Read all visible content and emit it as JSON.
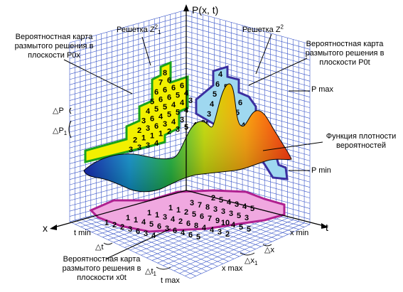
{
  "title": {
    "axis_p": "P(x, t)",
    "axis_x": "x",
    "axis_t": "t"
  },
  "labels": {
    "grid_z1_base": "Решетка Z",
    "grid_z1_sup": "2",
    "grid_z1_sub": "1",
    "grid_z2_base": "Решетка Z",
    "grid_z2_sup": "2",
    "map_p0x_1": "Вероятностная карта",
    "map_p0x_2": "размытого решения в",
    "map_p0x_3": "плоскости P0x",
    "map_p0t_1": "Вероятностная карта",
    "map_p0t_2": "размытого решения в",
    "map_p0t_3": "плоскости P0t",
    "map_x0t_1": "Вероятностная карта",
    "map_x0t_2": "размытого решения в",
    "map_x0t_3": "плоскости x0t",
    "density_1": "Функция плотности",
    "density_2": "вероятностей",
    "p_max": "P max",
    "p_min": "P min",
    "t_min": "t min",
    "t_max": "t max",
    "x_min": "x min",
    "x_max": "x max",
    "delta_p": "△P",
    "delta_p1": "△P",
    "delta_t": "△t",
    "delta_t1": "△t",
    "delta_x": "△x",
    "delta_x1": "△x",
    "sub_1": "1"
  },
  "maps": {
    "p0x_rows": [
      "8",
      "7 6",
      "6 6 6 6",
      "5 6 6 5 4",
      "4 5 5 4 4 3",
      "3 6 4 5 5 4",
      "2 3 6 3 4 3",
      "2 1 1 1 2 3 5 4 3",
      "3 3 3 4"
    ],
    "p0t_rows": [
      "4",
      "6 5",
      "5 6 6 6",
      "4 5 7 5",
      "3 4 6 5 4",
      "4 5 4 3 3",
      "3 2",
      "2"
    ],
    "x0t_rows": [
      "2 5 4 3 4 5",
      "3 7 8 3 3 3 5 3",
      "1 1 2 5 6 7 9 10 4 5 5",
      "1 1 3 4 2 6 8 4 4 3 2",
      "1 1 4 5 6 3 6 4 6 5",
      "1 2 2 3 6 3 4"
    ]
  },
  "colors": {
    "grid": "#3a56c8",
    "map_p0x_fill": "#f2f000",
    "map_p0x_border": "#1aa31a",
    "map_p0t_fill": "#9fd8f0",
    "map_p0t_border": "#3b2fa0",
    "map_x0t_fill": "#f0a8e0",
    "map_x0t_border": "#b02090"
  }
}
